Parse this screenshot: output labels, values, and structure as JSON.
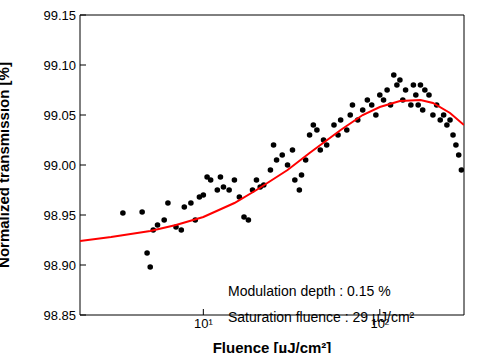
{
  "chart_data": {
    "type": "scatter",
    "x_label": "Fluence [µJ/cm²]",
    "y_label": "Normalized transmission [%]",
    "annotations": [
      "Modulation depth : 0.15 %",
      "Saturation fluence : 29 µJ/cm²"
    ],
    "log": "x",
    "grid": false,
    "xlim": [
      2,
      300
    ],
    "xticks": [
      {
        "value": 10,
        "label": "10¹"
      },
      {
        "value": 100,
        "label": "10²"
      }
    ],
    "ylim": [
      98.85,
      99.15
    ],
    "yticks": [
      98.85,
      {
        "value": 98.9,
        "label": "98.90"
      },
      98.95,
      {
        "value": 99.0,
        "label": "99.00"
      },
      99.05,
      {
        "value": 99.1,
        "label": "99.10"
      },
      99.15
    ],
    "series": [
      {
        "type": "scatter",
        "marker": "circle",
        "color": "#000000",
        "x": [
          3.5,
          4.5,
          4.8,
          5,
          5.2,
          5.5,
          6,
          6.3,
          7,
          7.5,
          7.8,
          8.5,
          9,
          9.5,
          10,
          10.5,
          11,
          12,
          12.5,
          13,
          14,
          15,
          16,
          17,
          18,
          19,
          20,
          21,
          22,
          24,
          25,
          26,
          28,
          30,
          32,
          33,
          35,
          36,
          38,
          40,
          42,
          44,
          46,
          48,
          50,
          55,
          58,
          60,
          65,
          68,
          70,
          75,
          80,
          85,
          90,
          95,
          100,
          105,
          110,
          115,
          120,
          125,
          130,
          135,
          140,
          150,
          155,
          160,
          165,
          170,
          175,
          180,
          190,
          200,
          210,
          220,
          230,
          240,
          250,
          260,
          270,
          280,
          290
        ],
        "values": [
          98.952,
          98.953,
          98.912,
          98.898,
          98.935,
          98.94,
          98.945,
          98.962,
          98.938,
          98.935,
          98.958,
          98.962,
          98.945,
          98.968,
          98.97,
          98.988,
          98.985,
          98.975,
          98.988,
          98.978,
          98.975,
          98.985,
          98.968,
          98.948,
          98.945,
          98.975,
          98.985,
          98.978,
          98.98,
          98.995,
          99.02,
          99.005,
          99.01,
          99.0,
          99.015,
          98.985,
          98.975,
          98.99,
          99.005,
          99.03,
          99.04,
          99.035,
          99.015,
          99.025,
          99.02,
          99.04,
          99.03,
          99.045,
          99.035,
          99.05,
          99.06,
          99.045,
          99.055,
          99.065,
          99.06,
          99.05,
          99.07,
          99.065,
          99.075,
          99.06,
          99.09,
          99.08,
          99.085,
          99.065,
          99.075,
          99.06,
          99.08,
          99.07,
          99.06,
          99.08,
          99.055,
          99.075,
          99.07,
          99.05,
          99.06,
          99.045,
          99.05,
          99.04,
          99.045,
          99.03,
          99.02,
          99.01,
          98.995
        ]
      },
      {
        "type": "line",
        "line_style": "solid",
        "color": "#ff0000",
        "x": [
          2,
          3,
          5,
          7,
          10,
          15,
          20,
          30,
          40,
          60,
          80,
          100,
          130,
          170,
          200,
          250,
          300
        ],
        "values": [
          98.924,
          98.928,
          98.934,
          98.94,
          98.948,
          98.962,
          98.975,
          98.995,
          99.012,
          99.035,
          99.05,
          99.058,
          99.064,
          99.065,
          99.062,
          99.052,
          99.04
        ]
      }
    ]
  }
}
